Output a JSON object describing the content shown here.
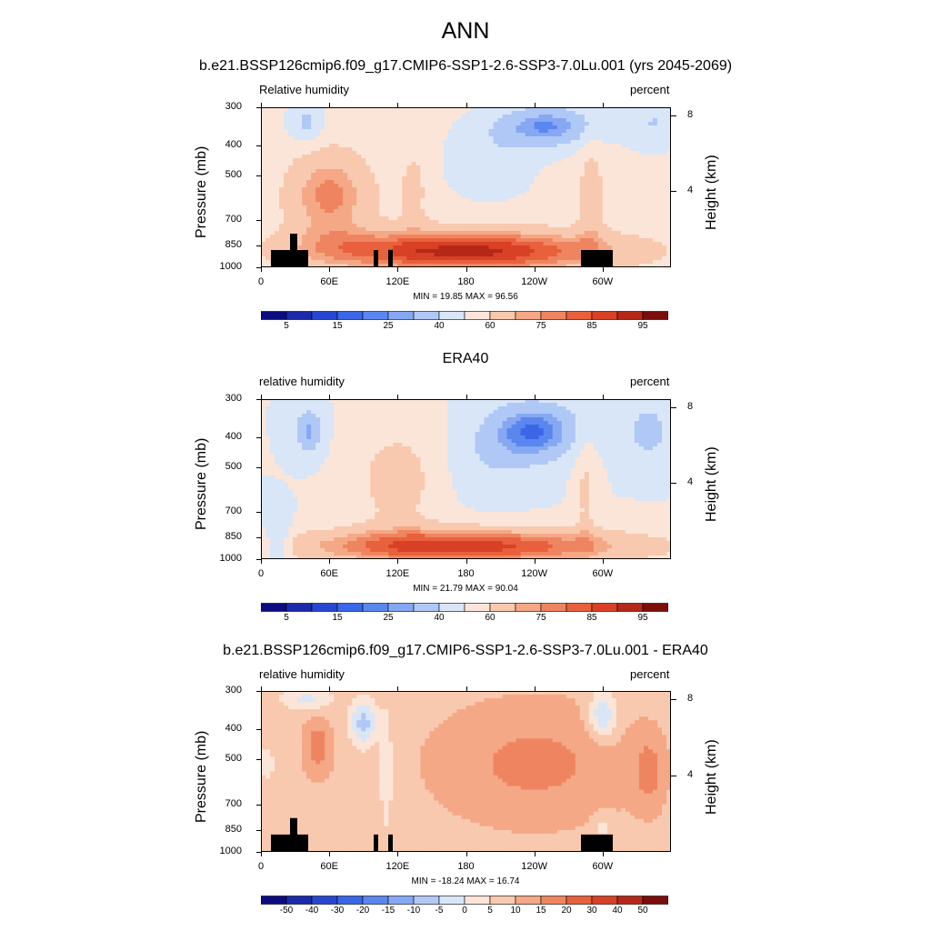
{
  "main_title": "ANN",
  "chart_data": [
    {
      "type": "heatmap",
      "title": "b.e21.BSSP126cmip6.f09_g17.CMIP6-SSP1-2.6-SSP3-7.0Lu.001 (yrs 2045-2069)",
      "left_label": "Relative humidity",
      "right_label": "percent",
      "ylabel": "Pressure (mb)",
      "ylabel_right": "Height (km)",
      "yticks": [
        "300",
        "400",
        "500",
        "700",
        "850",
        "1000"
      ],
      "ytick_values": [
        300,
        400,
        500,
        700,
        850,
        1000
      ],
      "height_ticks": [
        "8",
        "4"
      ],
      "height_tick_values": [
        8,
        4
      ],
      "xticks": [
        "0",
        "60E",
        "120E",
        "180",
        "120W",
        "60W"
      ],
      "xtick_values": [
        0,
        60,
        120,
        180,
        240,
        300
      ],
      "xlim": [
        0,
        360
      ],
      "ylim": [
        1000,
        300
      ],
      "min_max": "MIN =  19.85  MAX =  96.56",
      "colorbar_labels": [
        "5",
        "15",
        "25",
        "40",
        "60",
        "75",
        "85",
        "95"
      ],
      "colorbar_levels": [
        5,
        10,
        15,
        20,
        25,
        30,
        40,
        50,
        60,
        70,
        75,
        80,
        85,
        90,
        95
      ],
      "topography": true
    },
    {
      "type": "heatmap",
      "title": "ERA40",
      "left_label": "relative humidity",
      "right_label": "percent",
      "ylabel": "Pressure (mb)",
      "ylabel_right": "Height (km)",
      "yticks": [
        "300",
        "400",
        "500",
        "700",
        "850",
        "1000"
      ],
      "ytick_values": [
        300,
        400,
        500,
        700,
        850,
        1000
      ],
      "height_ticks": [
        "8",
        "4"
      ],
      "height_tick_values": [
        8,
        4
      ],
      "xticks": [
        "0",
        "60E",
        "120E",
        "180",
        "120W",
        "60W"
      ],
      "xtick_values": [
        0,
        60,
        120,
        180,
        240,
        300
      ],
      "xlim": [
        0,
        360
      ],
      "ylim": [
        1000,
        300
      ],
      "min_max": "MIN =  21.79  MAX =  90.04",
      "colorbar_labels": [
        "5",
        "15",
        "25",
        "40",
        "60",
        "75",
        "85",
        "95"
      ],
      "colorbar_levels": [
        5,
        10,
        15,
        20,
        25,
        30,
        40,
        50,
        60,
        70,
        75,
        80,
        85,
        90,
        95
      ],
      "topography": false
    },
    {
      "type": "heatmap",
      "title": "b.e21.BSSP126cmip6.f09_g17.CMIP6-SSP1-2.6-SSP3-7.0Lu.001 - ERA40",
      "left_label": "relative humidity",
      "right_label": "percent",
      "ylabel": "Pressure (mb)",
      "ylabel_right": "Height (km)",
      "yticks": [
        "300",
        "400",
        "500",
        "700",
        "850",
        "1000"
      ],
      "ytick_values": [
        300,
        400,
        500,
        700,
        850,
        1000
      ],
      "height_ticks": [
        "8",
        "4"
      ],
      "height_tick_values": [
        8,
        4
      ],
      "xticks": [
        "0",
        "60E",
        "120E",
        "180",
        "120W",
        "60W"
      ],
      "xtick_values": [
        0,
        60,
        120,
        180,
        240,
        300
      ],
      "xlim": [
        0,
        360
      ],
      "ylim": [
        1000,
        300
      ],
      "min_max": "MIN = -18.24  MAX =  16.74",
      "colorbar_labels": [
        "-50",
        "-40",
        "-30",
        "-20",
        "-15",
        "-10",
        "-5",
        "0",
        "5",
        "10",
        "15",
        "20",
        "30",
        "40",
        "50"
      ],
      "colorbar_levels": [
        -60,
        -50,
        -40,
        -30,
        -20,
        -15,
        -10,
        -5,
        0,
        5,
        10,
        15,
        20,
        30,
        40,
        50
      ],
      "topography": true
    }
  ],
  "colormap": [
    "#0c0c80",
    "#1a2aa8",
    "#2747d2",
    "#3a66e8",
    "#5a86f0",
    "#86a8f2",
    "#b0c8f5",
    "#d8e6f8",
    "#fbe5d8",
    "#f8c9ae",
    "#f4a886",
    "#ef8560",
    "#e8603c",
    "#d84125",
    "#b52818",
    "#7b0e0a"
  ],
  "topography_color": "#000000"
}
